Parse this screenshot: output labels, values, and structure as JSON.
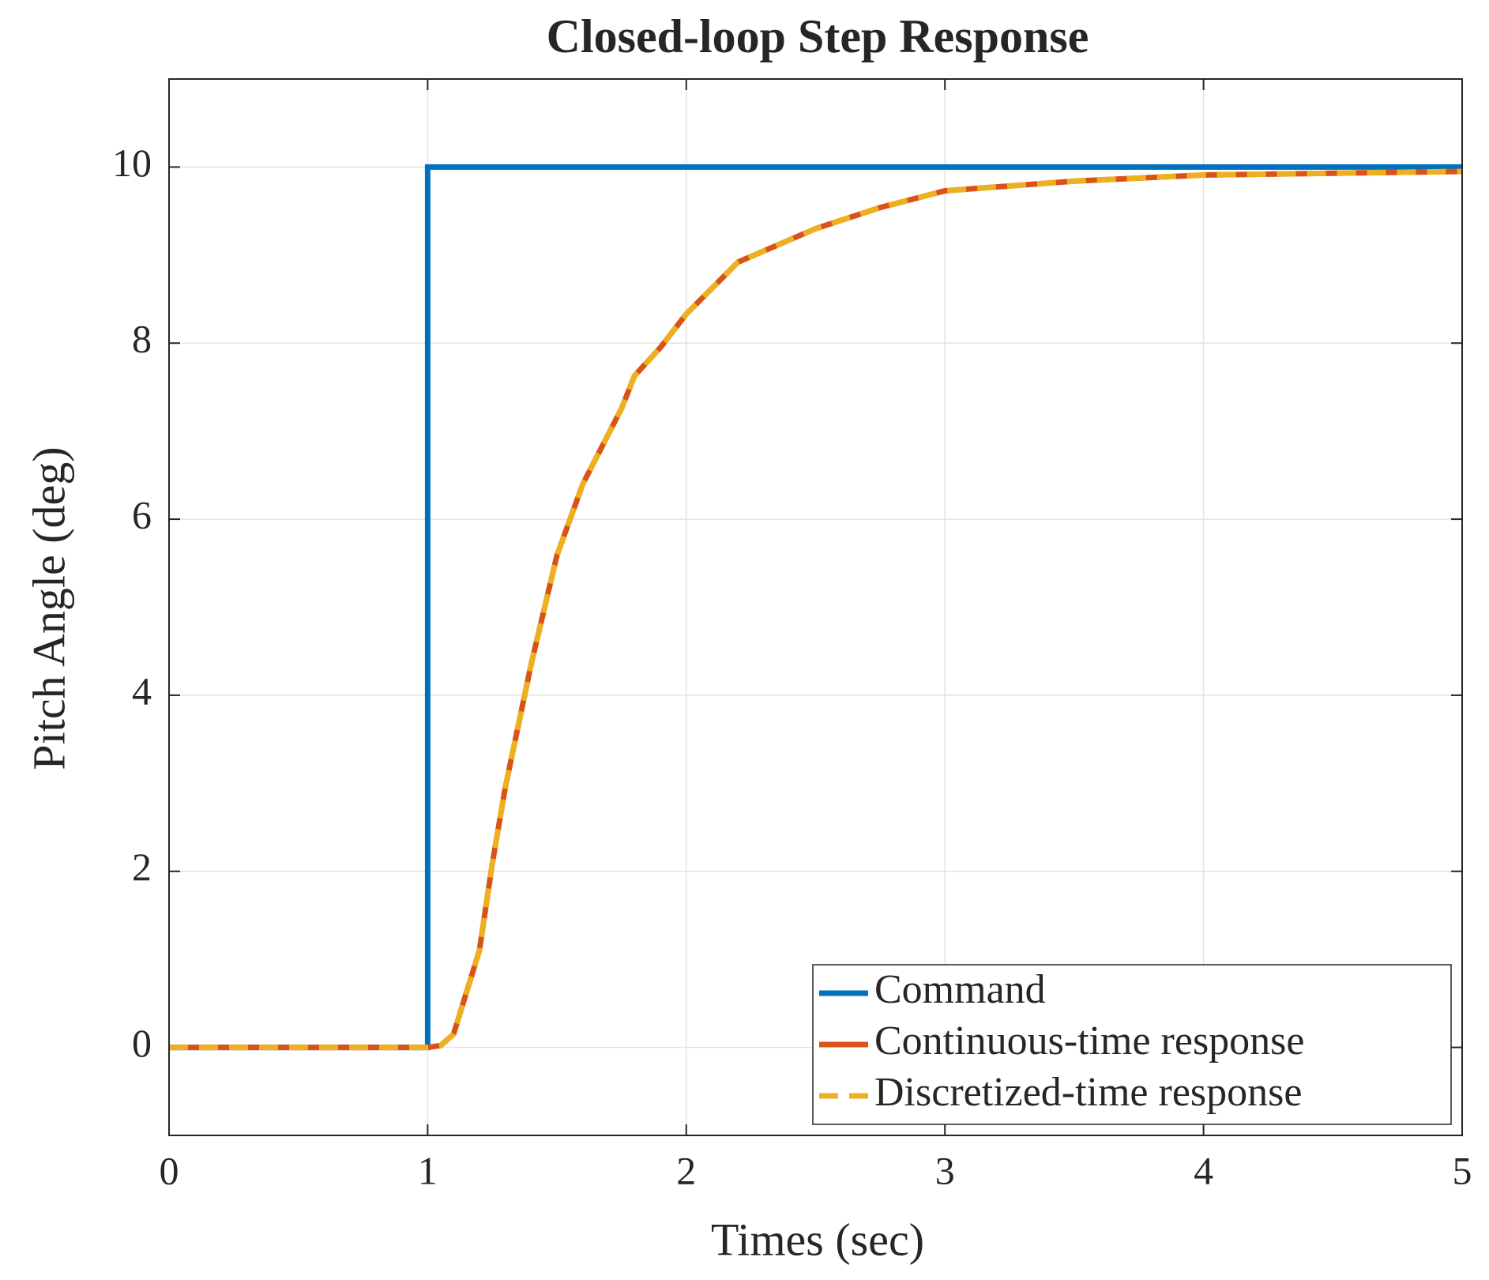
{
  "chart_data": {
    "type": "line",
    "title": "Closed-loop Step Response",
    "x_label": "Times (sec)",
    "y_label": "Pitch Angle (deg)",
    "xlim": [
      0,
      5
    ],
    "xticks": [
      0,
      1,
      2,
      3,
      4,
      5
    ],
    "ylim": [
      -1,
      11
    ],
    "yticks": [
      0,
      2,
      4,
      6,
      8,
      10
    ],
    "grid": true,
    "legend": "lower-right",
    "series": [
      {
        "name": "Command",
        "color": "#0072bd",
        "style": "solid",
        "x": [
          0,
          1,
          1,
          5
        ],
        "values": [
          0,
          0,
          10,
          10
        ]
      },
      {
        "name": "Continuous-time response",
        "color": "#d95319",
        "style": "solid",
        "x": [
          0,
          1,
          1.05,
          1.1,
          1.2,
          1.25,
          1.3,
          1.4,
          1.5,
          1.6,
          1.75,
          1.8,
          1.9,
          2,
          2.2,
          2.5,
          2.75,
          3,
          3.5,
          4,
          5
        ],
        "values": [
          0,
          0,
          0.02,
          0.15,
          1.1,
          2.09,
          2.95,
          4.35,
          5.59,
          6.4,
          7.26,
          7.63,
          7.95,
          8.33,
          8.92,
          9.3,
          9.54,
          9.73,
          9.84,
          9.91,
          9.95
        ]
      },
      {
        "name": "Discretized-time response",
        "color": "#edb120",
        "style": "dashed",
        "x": [
          0,
          1,
          1.05,
          1.1,
          1.2,
          1.25,
          1.3,
          1.4,
          1.5,
          1.6,
          1.75,
          1.8,
          1.9,
          2,
          2.2,
          2.5,
          2.75,
          3,
          3.5,
          4,
          5
        ],
        "values": [
          0,
          0,
          0.02,
          0.15,
          1.1,
          2.09,
          2.95,
          4.35,
          5.59,
          6.4,
          7.26,
          7.63,
          7.95,
          8.33,
          8.92,
          9.3,
          9.54,
          9.73,
          9.84,
          9.91,
          9.95
        ]
      }
    ]
  }
}
